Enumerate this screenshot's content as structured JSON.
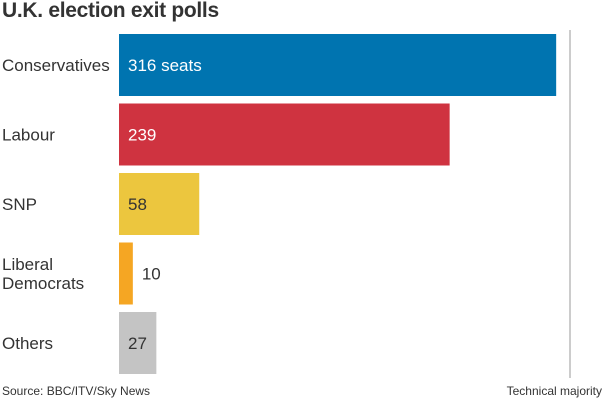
{
  "chart_data": {
    "type": "bar",
    "orientation": "horizontal",
    "title": "U.K. election exit polls",
    "categories": [
      [
        "Conservatives"
      ],
      [
        "Labour"
      ],
      [
        "SNP"
      ],
      [
        "Liberal",
        "Democrats"
      ],
      [
        "Others"
      ]
    ],
    "values": [
      316,
      239,
      58,
      10,
      27
    ],
    "value_labels": [
      "316 seats",
      "239",
      "58",
      "10",
      "27"
    ],
    "colors": [
      "#0074b0",
      "#cf3340",
      "#ecc63e",
      "#f5a623",
      "#c4c4c4"
    ],
    "xlim": [
      0,
      326
    ],
    "reference_line": {
      "value": 326,
      "label": "Technical majority"
    },
    "grid": false,
    "legend": "none",
    "source": "Source: BBC/ITV/Sky News"
  }
}
